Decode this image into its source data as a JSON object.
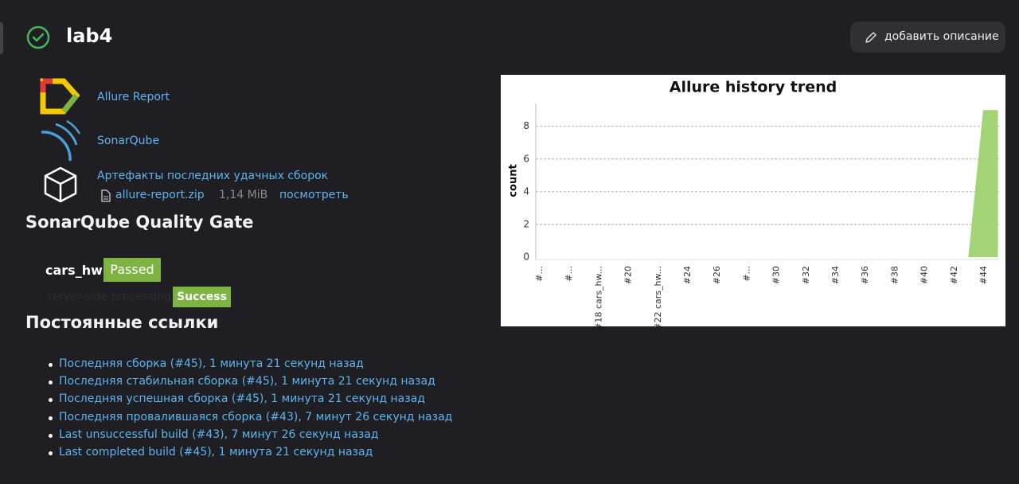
{
  "header": {
    "title": "lab4",
    "button": "добавить описание"
  },
  "actions": [
    {
      "label": "Allure Report"
    },
    {
      "label": "SonarQube"
    },
    {
      "label": "Артефакты последних удачных сборок"
    }
  ],
  "artifact": {
    "file": "allure-report.zip",
    "size": "1,14 MiB",
    "view": "посмотреть"
  },
  "quality_gate": {
    "title": "SonarQube Quality Gate",
    "project": "cars_hw",
    "status": "Passed",
    "processing_label": "server-side processing:",
    "processing_status": "Success"
  },
  "permalinks": {
    "title": "Постоянные ссылки",
    "items": [
      "Последняя сборка (#45), 1 минута 21 секунд назад",
      "Последняя стабильная сборка (#45), 1 минута 21 секунд назад",
      "Последняя успешная сборка (#45), 1 минута 21 секунд назад",
      "Последняя провалившаяся сборка (#43), 7 минут 26 секунд назад",
      "Last unsuccessful build (#43), 7 минут 26 секунд назад",
      "Last completed build (#45), 1 минута 21 секунд назад"
    ]
  },
  "chart": {
    "type": "area",
    "title": "Allure history trend",
    "y_label": "count",
    "color": "#a3d577",
    "categories": [
      "#...",
      null,
      "#...",
      null,
      "#18 cars_hw...",
      null,
      "#20",
      null,
      "#22 cars_hw...",
      null,
      "#24",
      null,
      "#26",
      null,
      "#...",
      null,
      "#30",
      null,
      "#32",
      null,
      "#34",
      null,
      "#36",
      null,
      "#38",
      null,
      "#40",
      null,
      "#42",
      null,
      "#44",
      null
    ],
    "values": [
      0,
      0,
      0,
      0,
      0,
      0,
      0,
      0,
      0,
      0,
      0,
      0,
      0,
      0,
      0,
      0,
      0,
      0,
      0,
      0,
      0,
      0,
      0,
      0,
      0,
      0,
      0,
      0,
      0,
      0,
      9,
      9
    ],
    "ylim": [
      0,
      9.4
    ],
    "yticks": [
      0,
      2,
      4,
      6,
      8
    ],
    "grid": true
  }
}
